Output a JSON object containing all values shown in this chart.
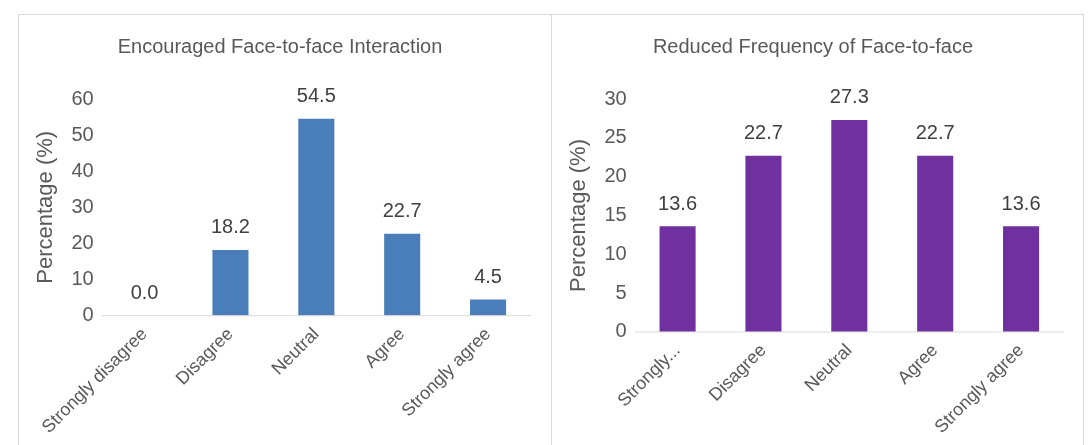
{
  "chart_data": [
    {
      "type": "bar",
      "title": "Encouraged Face-to-face Interaction",
      "ylabel": "Percentage (%)",
      "categories": [
        "Strongly disagree",
        "Disagree",
        "Neutral",
        "Agree",
        "Strongly agree"
      ],
      "values": [
        0,
        18.2,
        54.5,
        22.7,
        4.5
      ],
      "value_labels": [
        "0.0",
        "18.2",
        "54.5",
        "22.7",
        "4.5"
      ],
      "color": "#4a7ebb",
      "ylim": [
        0,
        60
      ],
      "yticks": [
        0,
        10,
        20,
        30,
        40,
        50,
        60
      ]
    },
    {
      "type": "bar",
      "title": "Reduced Frequency of Face-to-face",
      "ylabel": "Percentage (%)",
      "categories": [
        "Strongly...",
        "Disagree",
        "Neutral",
        "Agree",
        "Strongly agree"
      ],
      "values": [
        13.6,
        22.7,
        27.3,
        22.7,
        13.6
      ],
      "value_labels": [
        "13.6",
        "22.7",
        "27.3",
        "22.7",
        "13.6"
      ],
      "color": "#7030a0",
      "ylim": [
        0,
        30
      ],
      "yticks": [
        0,
        5,
        10,
        15,
        20,
        25,
        30
      ]
    }
  ]
}
